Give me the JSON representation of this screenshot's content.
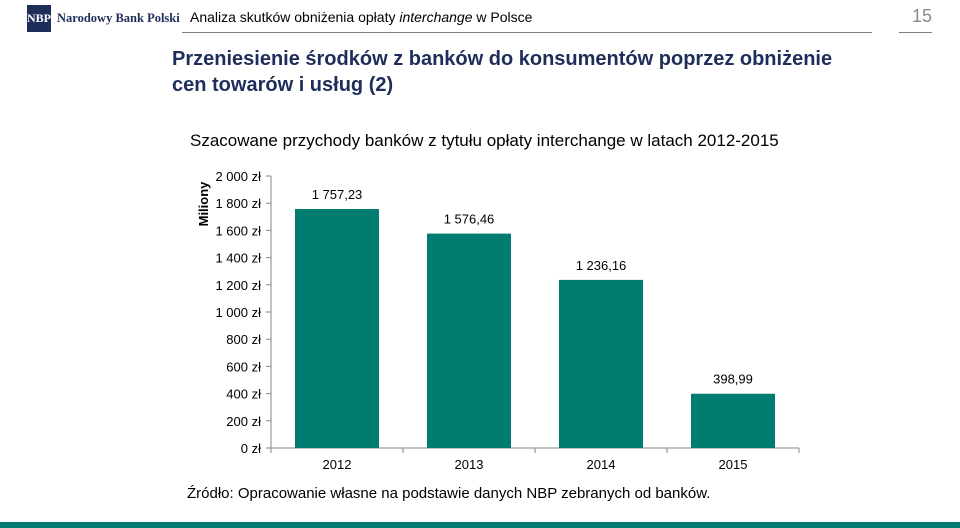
{
  "header": {
    "logo_mark": "NBP",
    "logo_text": "Narodowy Bank Polski",
    "title_prefix": "Analiza skutków obniżenia opłaty ",
    "title_italic": "interchange",
    "title_suffix": " w Polsce",
    "page_number": "15"
  },
  "slide_title": "Przeniesienie środków z banków do konsumentów poprzez obniżenie cen towarów i usług (2)",
  "source": "Źródło: Opracowanie własne na podstawie danych NBP zebranych od banków.",
  "colors": {
    "bar": "#007d70",
    "brand_navy": "#1f2d5a",
    "bottom_bar": "#007d70"
  },
  "chart_data": {
    "type": "bar",
    "title": "Szacowane przychody banków z tytułu opłaty interchange w latach 2012-2015",
    "ylabel": "Miliony",
    "categories": [
      "2012",
      "2013",
      "2014",
      "2015"
    ],
    "values": [
      1757.23,
      1576.46,
      1236.16,
      398.99
    ],
    "value_labels": [
      "1 757,23",
      "1 576,46",
      "1 236,16",
      "398,99"
    ],
    "ylim": [
      0,
      2000
    ],
    "yticks": [
      0,
      200,
      400,
      600,
      800,
      1000,
      1200,
      1400,
      1600,
      1800,
      2000
    ],
    "ytick_labels": [
      "0 zł",
      "200 zł",
      "400 zł",
      "600 zł",
      "800 zł",
      "1 000 zł",
      "1 200 zł",
      "1 400 zł",
      "1 600 zł",
      "1 800 zł",
      "2 000 zł"
    ],
    "grid": false,
    "legend": "none"
  }
}
